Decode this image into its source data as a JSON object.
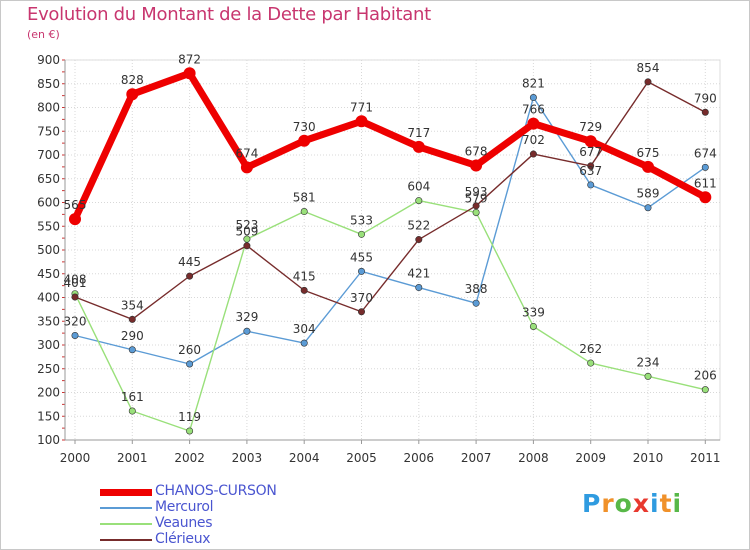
{
  "chart_data": {
    "type": "line",
    "title": "Evolution du Montant de la Dette par Habitant",
    "subtitle": "(en €)",
    "categories": [
      "2000",
      "2001",
      "2002",
      "2003",
      "2004",
      "2005",
      "2006",
      "2007",
      "2008",
      "2009",
      "2010",
      "2011"
    ],
    "ylim": [
      100,
      900
    ],
    "yticks": [
      100,
      150,
      200,
      250,
      300,
      350,
      400,
      450,
      500,
      550,
      600,
      650,
      700,
      750,
      800,
      850,
      900
    ],
    "grid": true,
    "legend_position": "bottom-left",
    "series": [
      {
        "name": "CHANOS-CURSON",
        "color": "#ee0000",
        "values": [
          565,
          828,
          872,
          674,
          730,
          771,
          717,
          678,
          766,
          729,
          675,
          611
        ]
      },
      {
        "name": "Mercurol",
        "color": "#5b9bd5",
        "values": [
          320,
          290,
          260,
          329,
          304,
          455,
          421,
          388,
          821,
          637,
          589,
          674
        ]
      },
      {
        "name": "Veaunes",
        "color": "#99e07a",
        "values": [
          408,
          161,
          119,
          523,
          581,
          533,
          604,
          579,
          339,
          262,
          234,
          206
        ]
      },
      {
        "name": "Clérieux",
        "color": "#772c2c",
        "values": [
          401,
          354,
          445,
          509,
          415,
          370,
          522,
          593,
          702,
          677,
          854,
          790
        ]
      }
    ]
  },
  "logo": {
    "letters": [
      "P",
      "r",
      "o",
      "x",
      "i",
      "t",
      "i"
    ],
    "colors": [
      "#2f9be0",
      "#f0912a",
      "#58b848",
      "#e8392f",
      "#2f9be0",
      "#f0912a",
      "#58b848"
    ]
  }
}
